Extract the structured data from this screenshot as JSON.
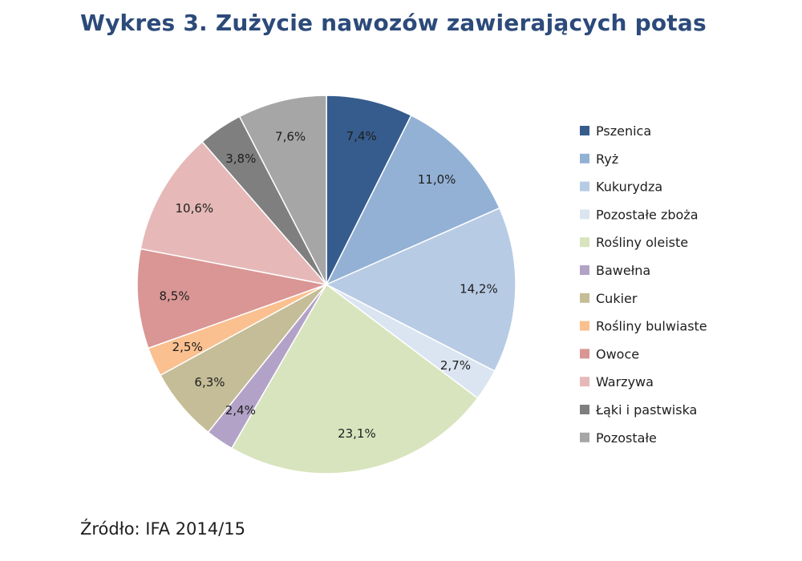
{
  "chart_data": {
    "type": "pie",
    "title": "Wykres 3. Zużycie nawozów zawierających potas",
    "source": "Źródło: IFA 2014/15",
    "legend_position": "right",
    "slices": [
      {
        "label": "Pszenica",
        "value": 7.4,
        "display": "7,4%",
        "color": "#365c8d"
      },
      {
        "label": "Ryż",
        "value": 11.0,
        "display": "11,0%",
        "color": "#93b1d5"
      },
      {
        "label": "Kukurydza",
        "value": 14.2,
        "display": "14,2%",
        "color": "#b8cbe4"
      },
      {
        "label": "Pozostałe zboża",
        "value": 2.7,
        "display": "2,7%",
        "color": "#dbe5f1"
      },
      {
        "label": "Rośliny oleiste",
        "value": 23.1,
        "display": "23,1%",
        "color": "#d7e4bd"
      },
      {
        "label": "Bawełna",
        "value": 2.4,
        "display": "2,4%",
        "color": "#b3a2c7"
      },
      {
        "label": "Cukier",
        "value": 6.3,
        "display": "6,3%",
        "color": "#c4bd97"
      },
      {
        "label": "Rośliny bulwiaste",
        "value": 2.5,
        "display": "2,5%",
        "color": "#fac090"
      },
      {
        "label": "Owoce",
        "value": 8.5,
        "display": "8,5%",
        "color": "#d99694"
      },
      {
        "label": "Warzywa",
        "value": 10.6,
        "display": "10,6%",
        "color": "#e6b9b8"
      },
      {
        "label": "Łąki i pastwiska",
        "value": 3.8,
        "display": "3,8%",
        "color": "#7f7f7f"
      },
      {
        "label": "Pozostałe",
        "value": 7.6,
        "display": "7,6%",
        "color": "#a6a6a6"
      }
    ]
  }
}
